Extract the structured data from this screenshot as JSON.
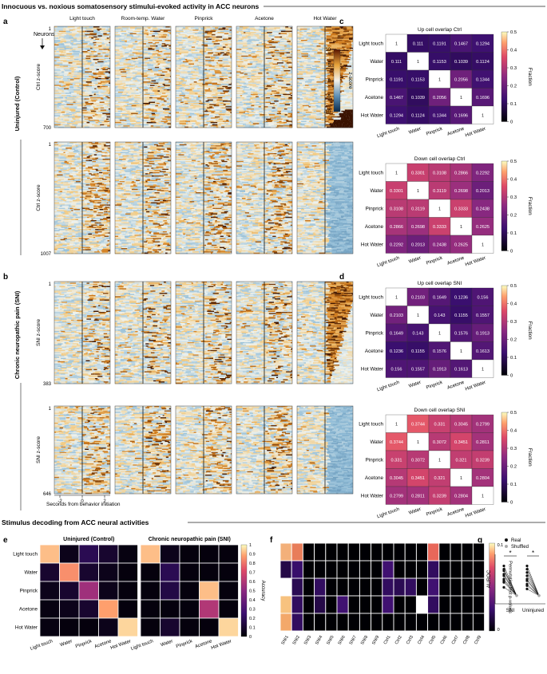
{
  "header1": "Innocuous vs. noxious somatosensory stimului-evoked activity in ACC neurons",
  "header2": "Stimulus decoding from ACC neural activities",
  "panel_letters": {
    "a": "a",
    "b": "b",
    "c": "c",
    "d": "d",
    "e": "e",
    "f": "f",
    "g": "g"
  },
  "stimuli": [
    "Light touch",
    "Room-temp. Water",
    "Pinprick",
    "Acetone",
    "Hot Water"
  ],
  "heatmap_stimuli_short": [
    "Light touch",
    "Water",
    "Pinprick",
    "Acetone",
    "Hot Water"
  ],
  "group_uninjured": "Uninjured (Control)",
  "group_sni": "Chronic neuropathic pain (SNI)",
  "neurons_label": "Neurons",
  "raster_rows": [
    {
      "ylabel": "Ctrl z-score",
      "top": "1",
      "bottom": "700",
      "mode": "up"
    },
    {
      "ylabel": "Ctrl z-score",
      "top": "1",
      "bottom": "1007",
      "mode": "down"
    },
    {
      "ylabel": "SNI z-score",
      "top": "1",
      "bottom": "383",
      "mode": "up"
    },
    {
      "ylabel": "SNI z-score",
      "top": "1",
      "bottom": "646",
      "mode": "down"
    }
  ],
  "raster_colorbar": {
    "label": "z-score",
    "ticks": [
      "10",
      "5",
      "0",
      "-5",
      "-10"
    ]
  },
  "time_ticks": [
    "-2",
    "0",
    "2"
  ],
  "time_xlabel": "Seconds from behavior initiation",
  "fraction_label": "Fraction",
  "fraction_ticks": [
    "0.5",
    "0.4",
    "0.3",
    "0.2",
    "0.1",
    "0"
  ],
  "accuracy_label": "Accuracy",
  "accuracy_ticks": [
    "1",
    "0.9",
    "0.8",
    "0.7",
    "0.6",
    "0.5",
    "0.4",
    "0.3",
    "0.2",
    "0.1",
    "0"
  ],
  "pvalue_label": "Permutation test p-values",
  "pvalue_ticks": [
    "0.1",
    "0"
  ],
  "g_legend": {
    "real": "Real",
    "shuffled": "Shuffled"
  },
  "g_ylabel": "AUROC",
  "g_xticks": [
    "SNI",
    "Uninjured"
  ],
  "g_stars": [
    "*",
    "*"
  ],
  "colors": {
    "up": "#3b0f70",
    "down": "#fcfdbf",
    "rasterPos": "#b35806",
    "rasterNeg": "#5e8fb5"
  },
  "chart_data": [
    {
      "type": "heatmap",
      "panel": "c",
      "title": "Up cell overlap Ctrl",
      "categories": [
        "Light touch",
        "Water",
        "Pinprick",
        "Acetone",
        "Hot Water"
      ],
      "values": [
        [
          1,
          0.111,
          0.1191,
          0.1467,
          0.1294
        ],
        [
          0.111,
          1,
          0.1153,
          0.1039,
          0.1124
        ],
        [
          0.1191,
          0.1153,
          1,
          0.2056,
          0.1344
        ],
        [
          0.1467,
          0.1039,
          0.2056,
          1,
          0.1696
        ],
        [
          0.1294,
          0.1124,
          0.1344,
          0.1696,
          1
        ]
      ],
      "zlim": [
        0,
        0.5
      ]
    },
    {
      "type": "heatmap",
      "panel": "c",
      "title": "Down cell overlap Ctrl",
      "categories": [
        "Light touch",
        "Water",
        "Pinprick",
        "Acetone",
        "Hot Water"
      ],
      "values": [
        [
          1,
          0.3301,
          0.3108,
          0.2866,
          0.2292
        ],
        [
          0.3301,
          1,
          0.3119,
          0.2698,
          0.2013
        ],
        [
          0.3108,
          0.3119,
          1,
          0.3333,
          0.2438
        ],
        [
          0.2866,
          0.2698,
          0.3333,
          1,
          0.2625
        ],
        [
          0.2292,
          0.2013,
          0.2438,
          0.2625,
          1
        ]
      ],
      "zlim": [
        0,
        0.5
      ]
    },
    {
      "type": "heatmap",
      "panel": "d",
      "title": "Up cell overlap SNI",
      "categories": [
        "Light touch",
        "Water",
        "Pinprick",
        "Acetone",
        "Hot Water"
      ],
      "values": [
        [
          1,
          0.2103,
          0.1649,
          0.1236,
          0.156
        ],
        [
          0.2103,
          1,
          0.143,
          0.1155,
          0.1557
        ],
        [
          0.1649,
          0.143,
          1,
          0.1576,
          0.1913
        ],
        [
          0.1236,
          0.1155,
          0.1576,
          1,
          0.1613
        ],
        [
          0.156,
          0.1557,
          0.1913,
          0.1613,
          1
        ]
      ],
      "zlim": [
        0,
        0.5
      ]
    },
    {
      "type": "heatmap",
      "panel": "d",
      "title": "Down cell overlap SNI",
      "categories": [
        "Light touch",
        "Water",
        "Pinprick",
        "Acetone",
        "Hot Water"
      ],
      "values": [
        [
          1,
          0.3744,
          0.331,
          0.3045,
          0.2799
        ],
        [
          0.3744,
          1,
          0.3072,
          0.3451,
          0.2811
        ],
        [
          0.331,
          0.3072,
          1,
          0.321,
          0.3239
        ],
        [
          0.3045,
          0.3451,
          0.321,
          1,
          0.2804
        ],
        [
          0.2799,
          0.2811,
          0.3239,
          0.2804,
          1
        ]
      ],
      "zlim": [
        0,
        0.5
      ]
    },
    {
      "type": "heatmap",
      "panel": "e",
      "title": "Uninjured (Control)",
      "categories": [
        "Light touch",
        "Water",
        "Pinprick",
        "Acetone",
        "Hot Water"
      ],
      "values": [
        [
          0.92,
          0.05,
          0.18,
          0.1,
          0.03
        ],
        [
          0.1,
          0.85,
          0.1,
          0.05,
          0.02
        ],
        [
          0.05,
          0.1,
          0.55,
          0.05,
          0.02
        ],
        [
          0.03,
          0.05,
          0.1,
          0.88,
          0.02
        ],
        [
          0.03,
          0.02,
          0.02,
          0.05,
          0.95
        ]
      ],
      "zlim": [
        0,
        1
      ]
    },
    {
      "type": "heatmap",
      "panel": "e",
      "title": "Chronic neuropathic pain (SNI)",
      "categories": [
        "Light touch",
        "Water",
        "Pinprick",
        "Acetone",
        "Hot Water"
      ],
      "values": [
        [
          0.92,
          0.05,
          0.02,
          0.02,
          0.02
        ],
        [
          0.02,
          0.18,
          0.02,
          0.02,
          0.02
        ],
        [
          0.02,
          0.15,
          0.02,
          0.92,
          0.02
        ],
        [
          0.02,
          0.02,
          0.02,
          0.6,
          0.02
        ],
        [
          0.02,
          0.1,
          0.02,
          0.02,
          0.95
        ]
      ],
      "zlim": [
        0,
        1
      ]
    },
    {
      "type": "heatmap",
      "panel": "f",
      "x": [
        "SNI1",
        "SNI2",
        "SNI3",
        "SNI4",
        "SNI5",
        "SNI6",
        "SNI7",
        "SNI8",
        "SNI9",
        "Ctrl1",
        "Ctrl2",
        "Ctrl3",
        "Ctrl4",
        "Ctrl5",
        "Ctrl6",
        "Ctrl7",
        "Ctrl8",
        "Ctrl9"
      ],
      "values": [
        [
          0.06,
          0.07,
          0,
          0,
          0,
          0,
          0,
          0,
          0,
          0,
          0,
          0,
          0,
          0.07,
          0,
          0,
          0,
          0
        ],
        [
          0.01,
          0.025,
          0,
          0,
          0,
          0,
          0,
          0,
          0,
          0.03,
          0,
          0,
          0,
          0.02,
          0,
          0,
          0,
          0
        ],
        [
          0.1,
          0.015,
          0,
          0.02,
          0,
          0,
          0,
          0,
          0,
          0.02,
          0.015,
          0.02,
          0,
          0.03,
          0,
          0,
          0,
          0
        ],
        [
          0.08,
          0.02,
          0,
          0.01,
          0,
          0.03,
          0,
          0,
          0,
          0.03,
          0,
          0,
          0.1,
          0.02,
          0,
          0,
          0,
          0
        ],
        [
          0.08,
          0.02,
          0,
          0,
          0,
          0,
          0,
          0,
          0,
          0,
          0,
          0,
          0,
          0,
          0,
          0,
          0,
          0
        ]
      ],
      "zlim": [
        0,
        0.1
      ]
    },
    {
      "type": "scatter",
      "panel": "g",
      "ylabel": "AUROC",
      "categories": [
        "SNI",
        "Uninjured"
      ],
      "series": [
        {
          "name": "Real",
          "SNI": [
            0.68,
            0.66,
            0.65,
            0.63,
            0.62,
            0.6,
            0.59,
            0.58,
            0.55
          ],
          "Uninjured": [
            0.68,
            0.66,
            0.64,
            0.62,
            0.6,
            0.59,
            0.57,
            0.56,
            0.54
          ]
        },
        {
          "name": "Shuffled",
          "SNI": [
            0.5,
            0.5,
            0.5,
            0.5,
            0.5,
            0.5,
            0.5,
            0.5,
            0.5
          ],
          "Uninjured": [
            0.5,
            0.5,
            0.5,
            0.5,
            0.5,
            0.5,
            0.5,
            0.5,
            0.5
          ]
        }
      ]
    }
  ]
}
